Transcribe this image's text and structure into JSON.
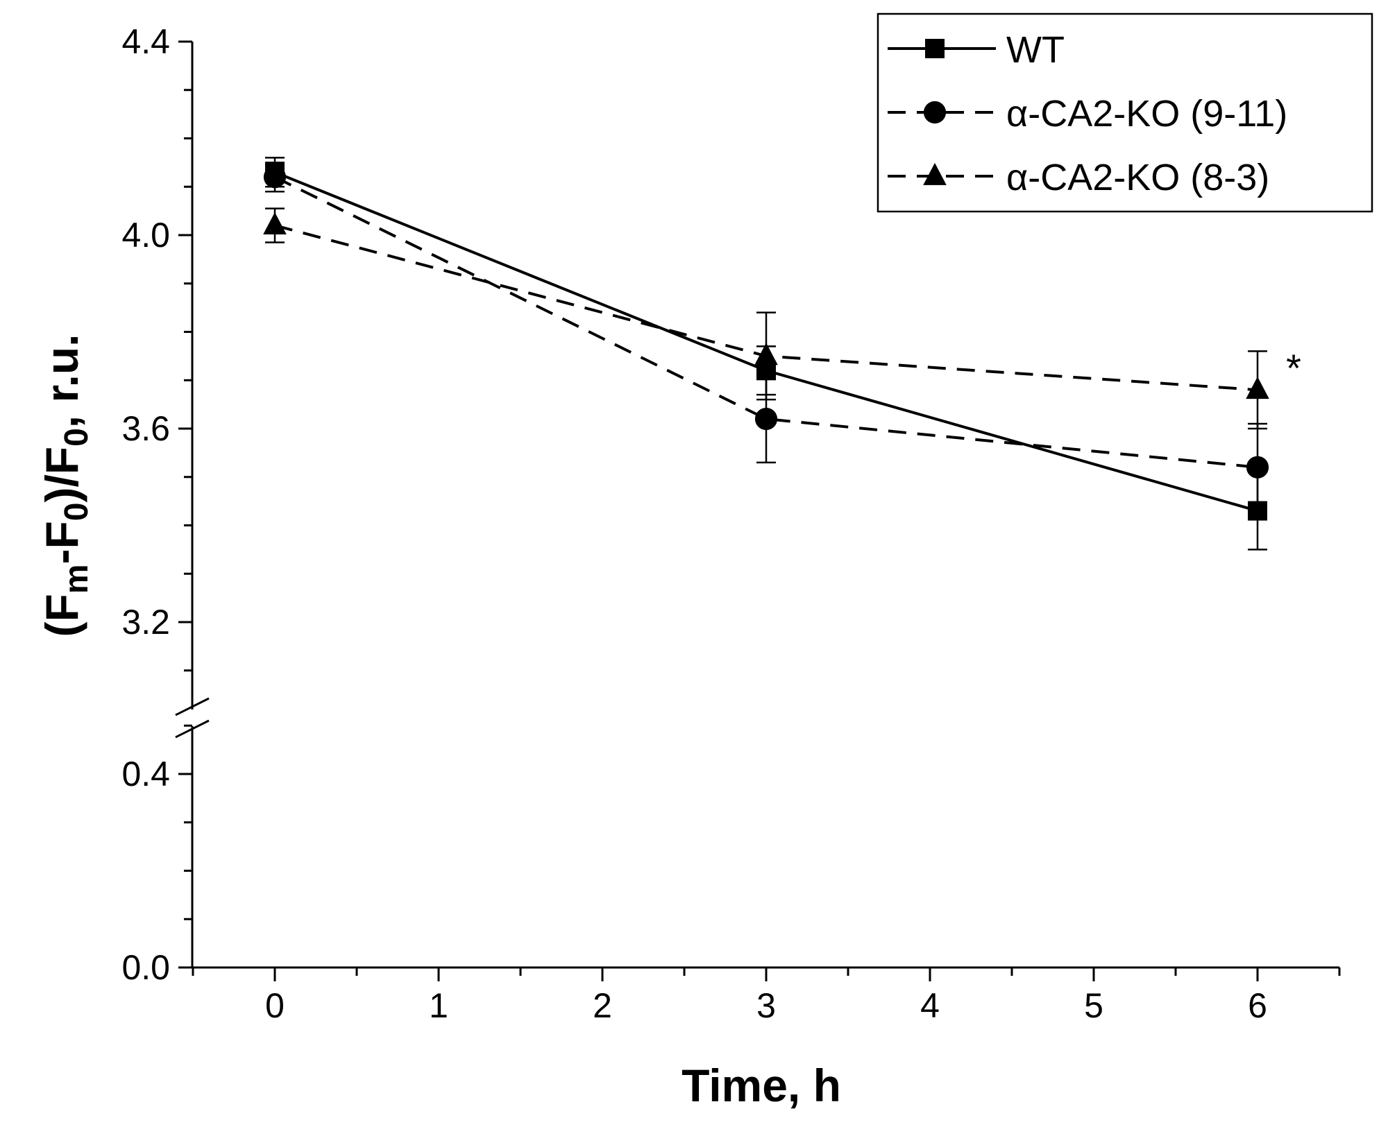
{
  "chart_data": {
    "type": "line",
    "title": "",
    "xlabel": "Time, h",
    "ylabel": {
      "p1": "(F",
      "s1": "m",
      "p2": "-F",
      "s2": "0",
      "p3": ")/F",
      "s3": "0",
      "p4": ", r.u."
    },
    "xlim": [
      -0.5,
      6.5
    ],
    "x_ticks": [
      0,
      1,
      2,
      3,
      4,
      5,
      6
    ],
    "x_tick_labels": [
      "0",
      "1",
      "2",
      "3",
      "4",
      "5",
      "6"
    ],
    "y_break": {
      "lower_range": [
        0.0,
        0.4
      ],
      "upper_range": [
        3.0,
        4.4
      ]
    },
    "y_ticks": [
      0.0,
      0.4,
      3.2,
      3.6,
      4.0,
      4.4
    ],
    "y_tick_labels": [
      "0.0",
      "0.4",
      "3.2",
      "3.6",
      "4.0",
      "4.4"
    ],
    "x": [
      0,
      3,
      6
    ],
    "series": [
      {
        "name": "WT",
        "marker": "square",
        "line": "solid",
        "values": [
          4.13,
          3.72,
          3.43
        ],
        "errors": [
          0.03,
          0.05,
          0.08
        ]
      },
      {
        "name": "α-CA2-KO (9-11)",
        "marker": "circle",
        "line": "dashed",
        "values": [
          4.12,
          3.62,
          3.52
        ],
        "errors": [
          0.03,
          0.09,
          0.09
        ]
      },
      {
        "name": "α-CA2-KO (8-3)",
        "marker": "triangle",
        "line": "dashed",
        "values": [
          4.02,
          3.75,
          3.68
        ],
        "errors": [
          0.035,
          0.09,
          0.08
        ]
      }
    ],
    "legend_position": "top-right",
    "annotations": [
      {
        "text": "*",
        "series": "α-CA2-KO (8-3)",
        "x": 6
      }
    ]
  }
}
